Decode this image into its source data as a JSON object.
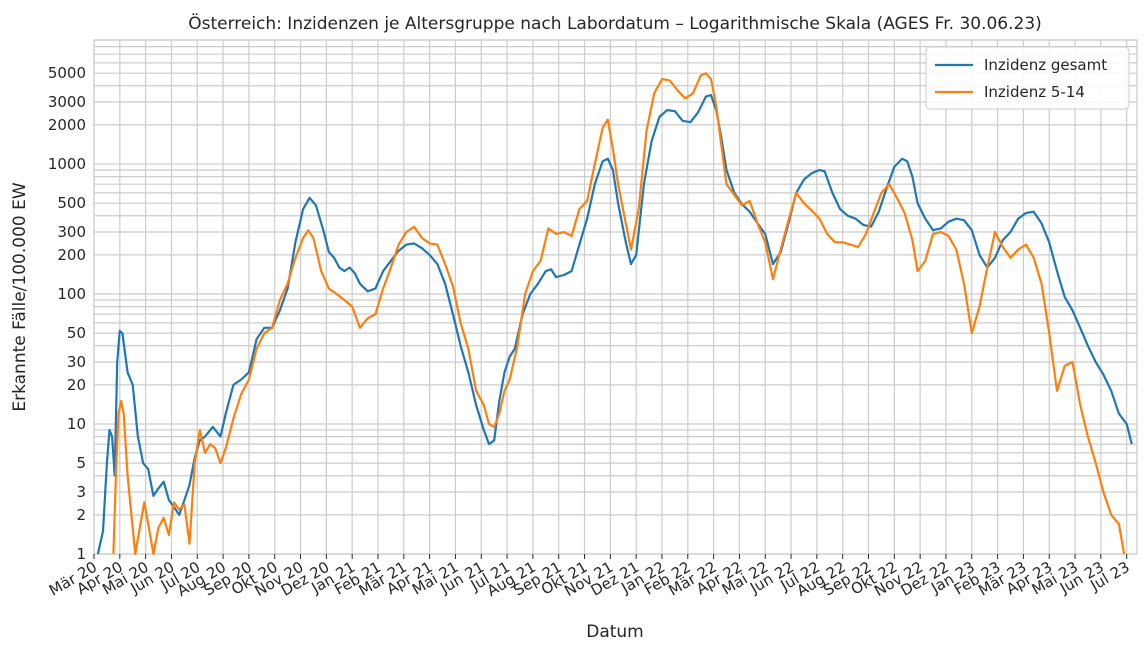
{
  "chart_data": {
    "type": "line",
    "title": "Österreich: Inzidenzen je Altersgruppe nach Labordatum – Logarithmische Skala (AGES Fr. 30.06.23)",
    "xlabel": "Datum",
    "ylabel": "Erkannte Fälle/100.000 EW",
    "yscale": "log",
    "ylim": [
      1,
      9000
    ],
    "xlim": [
      0,
      40.4
    ],
    "grid": true,
    "legend_position": "top-right",
    "x_tick_labels": [
      "Mär 20",
      "Apr 20",
      "Mai 20",
      "Jun 20",
      "Jul 20",
      "Aug 20",
      "Sep 20",
      "Okt 20",
      "Nov 20",
      "Dez 20",
      "Jan 21",
      "Feb 21",
      "Mär 21",
      "Apr 21",
      "Mai 21",
      "Jun 21",
      "Jul 21",
      "Aug 21",
      "Sep 21",
      "Okt 21",
      "Nov 21",
      "Dez 21",
      "Jan 22",
      "Feb 22",
      "Mär 22",
      "Apr 22",
      "Mai 22",
      "Jun 22",
      "Jul 22",
      "Aug 22",
      "Sep 22",
      "Okt 22",
      "Nov 22",
      "Dez 22",
      "Jan 23",
      "Feb 23",
      "Mär 23",
      "Apr 23",
      "Mai 23",
      "Jun 23",
      "Jul 23"
    ],
    "y_ticks": [
      1,
      2,
      3,
      5,
      10,
      20,
      30,
      50,
      100,
      200,
      300,
      500,
      1000,
      2000,
      3000,
      5000
    ],
    "y_tick_labels": [
      "1",
      "2",
      "3",
      "5",
      "10",
      "20",
      "30",
      "50",
      "100",
      "200",
      "300",
      "500",
      "1000",
      "2000",
      "3000",
      "5000"
    ],
    "x_unit": "months since Mar 2020",
    "series": [
      {
        "name": "Inzidenz gesamt",
        "color": "#1f77b4",
        "points": [
          [
            0.15,
            1
          ],
          [
            0.35,
            1.5
          ],
          [
            0.5,
            5
          ],
          [
            0.6,
            9
          ],
          [
            0.7,
            8
          ],
          [
            0.8,
            4
          ],
          [
            0.9,
            30
          ],
          [
            1.0,
            52
          ],
          [
            1.1,
            50
          ],
          [
            1.3,
            25
          ],
          [
            1.5,
            20
          ],
          [
            1.7,
            8
          ],
          [
            1.9,
            5
          ],
          [
            2.1,
            4.5
          ],
          [
            2.3,
            2.8
          ],
          [
            2.5,
            3.2
          ],
          [
            2.7,
            3.6
          ],
          [
            2.9,
            2.6
          ],
          [
            3.1,
            2.3
          ],
          [
            3.3,
            2.0
          ],
          [
            3.5,
            2.6
          ],
          [
            3.7,
            3.4
          ],
          [
            3.9,
            5.5
          ],
          [
            4.1,
            7.5
          ],
          [
            4.3,
            8
          ],
          [
            4.6,
            9.5
          ],
          [
            4.9,
            8
          ],
          [
            5.1,
            12
          ],
          [
            5.4,
            20
          ],
          [
            5.7,
            22
          ],
          [
            6.0,
            25
          ],
          [
            6.3,
            45
          ],
          [
            6.6,
            55
          ],
          [
            6.9,
            55
          ],
          [
            7.2,
            75
          ],
          [
            7.5,
            110
          ],
          [
            7.8,
            250
          ],
          [
            8.1,
            450
          ],
          [
            8.35,
            550
          ],
          [
            8.6,
            480
          ],
          [
            8.9,
            300
          ],
          [
            9.1,
            210
          ],
          [
            9.3,
            190
          ],
          [
            9.5,
            160
          ],
          [
            9.7,
            150
          ],
          [
            9.9,
            160
          ],
          [
            10.1,
            145
          ],
          [
            10.3,
            120
          ],
          [
            10.6,
            105
          ],
          [
            10.9,
            110
          ],
          [
            11.2,
            150
          ],
          [
            11.5,
            180
          ],
          [
            11.8,
            215
          ],
          [
            12.1,
            240
          ],
          [
            12.4,
            245
          ],
          [
            12.7,
            225
          ],
          [
            13.0,
            200
          ],
          [
            13.3,
            170
          ],
          [
            13.6,
            120
          ],
          [
            13.9,
            70
          ],
          [
            14.2,
            40
          ],
          [
            14.5,
            25
          ],
          [
            14.8,
            14
          ],
          [
            15.1,
            9
          ],
          [
            15.3,
            7
          ],
          [
            15.5,
            7.5
          ],
          [
            15.7,
            15
          ],
          [
            15.9,
            25
          ],
          [
            16.1,
            33
          ],
          [
            16.3,
            38
          ],
          [
            16.6,
            70
          ],
          [
            16.9,
            100
          ],
          [
            17.2,
            120
          ],
          [
            17.5,
            150
          ],
          [
            17.7,
            155
          ],
          [
            17.9,
            135
          ],
          [
            18.2,
            140
          ],
          [
            18.5,
            150
          ],
          [
            18.8,
            240
          ],
          [
            19.1,
            380
          ],
          [
            19.4,
            700
          ],
          [
            19.7,
            1050
          ],
          [
            19.9,
            1100
          ],
          [
            20.1,
            900
          ],
          [
            20.3,
            500
          ],
          [
            20.6,
            250
          ],
          [
            20.8,
            170
          ],
          [
            21.0,
            200
          ],
          [
            21.3,
            700
          ],
          [
            21.6,
            1500
          ],
          [
            21.9,
            2300
          ],
          [
            22.2,
            2600
          ],
          [
            22.5,
            2550
          ],
          [
            22.8,
            2150
          ],
          [
            23.1,
            2100
          ],
          [
            23.4,
            2500
          ],
          [
            23.7,
            3300
          ],
          [
            23.9,
            3400
          ],
          [
            24.1,
            2600
          ],
          [
            24.3,
            1600
          ],
          [
            24.5,
            900
          ],
          [
            24.8,
            600
          ],
          [
            25.1,
            490
          ],
          [
            25.4,
            430
          ],
          [
            25.7,
            350
          ],
          [
            26.0,
            290
          ],
          [
            26.3,
            170
          ],
          [
            26.6,
            210
          ],
          [
            26.9,
            350
          ],
          [
            27.2,
            600
          ],
          [
            27.5,
            760
          ],
          [
            27.8,
            850
          ],
          [
            28.1,
            900
          ],
          [
            28.3,
            880
          ],
          [
            28.6,
            600
          ],
          [
            28.9,
            450
          ],
          [
            29.2,
            400
          ],
          [
            29.5,
            380
          ],
          [
            29.8,
            340
          ],
          [
            30.1,
            330
          ],
          [
            30.4,
            430
          ],
          [
            30.7,
            650
          ],
          [
            31.0,
            950
          ],
          [
            31.3,
            1100
          ],
          [
            31.5,
            1050
          ],
          [
            31.7,
            800
          ],
          [
            31.9,
            500
          ],
          [
            32.2,
            380
          ],
          [
            32.5,
            310
          ],
          [
            32.8,
            320
          ],
          [
            33.1,
            360
          ],
          [
            33.4,
            380
          ],
          [
            33.7,
            370
          ],
          [
            34.0,
            310
          ],
          [
            34.3,
            200
          ],
          [
            34.6,
            160
          ],
          [
            34.9,
            190
          ],
          [
            35.2,
            260
          ],
          [
            35.5,
            300
          ],
          [
            35.8,
            380
          ],
          [
            36.1,
            420
          ],
          [
            36.4,
            430
          ],
          [
            36.7,
            350
          ],
          [
            37.0,
            250
          ],
          [
            37.3,
            150
          ],
          [
            37.6,
            95
          ],
          [
            37.9,
            75
          ],
          [
            38.2,
            55
          ],
          [
            38.5,
            40
          ],
          [
            38.8,
            30
          ],
          [
            39.1,
            24
          ],
          [
            39.4,
            18
          ],
          [
            39.7,
            12
          ],
          [
            40.0,
            10
          ],
          [
            40.2,
            7
          ]
        ]
      },
      {
        "name": "Inzidenz 5-14",
        "color": "#ff7f0e",
        "points": [
          [
            0.75,
            1
          ],
          [
            0.85,
            4
          ],
          [
            0.95,
            12
          ],
          [
            1.05,
            15
          ],
          [
            1.15,
            12
          ],
          [
            1.3,
            4
          ],
          [
            1.45,
            2
          ],
          [
            1.6,
            1
          ],
          [
            1.75,
            1.5
          ],
          [
            1.95,
            2.5
          ],
          [
            2.15,
            1.5
          ],
          [
            2.3,
            1
          ],
          [
            2.5,
            1.6
          ],
          [
            2.7,
            1.9
          ],
          [
            2.9,
            1.4
          ],
          [
            3.1,
            2.5
          ],
          [
            3.3,
            2.2
          ],
          [
            3.5,
            2.4
          ],
          [
            3.7,
            1.2
          ],
          [
            3.9,
            5
          ],
          [
            4.1,
            9
          ],
          [
            4.3,
            6
          ],
          [
            4.5,
            7
          ],
          [
            4.7,
            6.5
          ],
          [
            4.9,
            5
          ],
          [
            5.1,
            6.5
          ],
          [
            5.4,
            11
          ],
          [
            5.7,
            17
          ],
          [
            6.0,
            22
          ],
          [
            6.3,
            38
          ],
          [
            6.6,
            50
          ],
          [
            6.9,
            55
          ],
          [
            7.2,
            90
          ],
          [
            7.5,
            120
          ],
          [
            7.8,
            190
          ],
          [
            8.1,
            270
          ],
          [
            8.3,
            310
          ],
          [
            8.5,
            270
          ],
          [
            8.8,
            150
          ],
          [
            9.1,
            110
          ],
          [
            9.4,
            100
          ],
          [
            9.7,
            90
          ],
          [
            10.0,
            80
          ],
          [
            10.3,
            55
          ],
          [
            10.6,
            65
          ],
          [
            10.9,
            70
          ],
          [
            11.2,
            110
          ],
          [
            11.5,
            160
          ],
          [
            11.8,
            240
          ],
          [
            12.1,
            300
          ],
          [
            12.4,
            330
          ],
          [
            12.7,
            270
          ],
          [
            13.0,
            245
          ],
          [
            13.3,
            240
          ],
          [
            13.6,
            170
          ],
          [
            13.9,
            115
          ],
          [
            14.2,
            60
          ],
          [
            14.5,
            38
          ],
          [
            14.8,
            18
          ],
          [
            15.1,
            14
          ],
          [
            15.3,
            10
          ],
          [
            15.5,
            9.5
          ],
          [
            15.7,
            12
          ],
          [
            15.9,
            18
          ],
          [
            16.1,
            22
          ],
          [
            16.4,
            40
          ],
          [
            16.7,
            100
          ],
          [
            17.0,
            150
          ],
          [
            17.3,
            180
          ],
          [
            17.6,
            320
          ],
          [
            17.9,
            290
          ],
          [
            18.2,
            300
          ],
          [
            18.5,
            280
          ],
          [
            18.8,
            450
          ],
          [
            19.1,
            520
          ],
          [
            19.4,
            1000
          ],
          [
            19.7,
            1900
          ],
          [
            19.9,
            2200
          ],
          [
            20.1,
            1300
          ],
          [
            20.3,
            700
          ],
          [
            20.6,
            350
          ],
          [
            20.8,
            220
          ],
          [
            21.1,
            450
          ],
          [
            21.4,
            1800
          ],
          [
            21.7,
            3500
          ],
          [
            22.0,
            4500
          ],
          [
            22.3,
            4400
          ],
          [
            22.6,
            3700
          ],
          [
            22.9,
            3200
          ],
          [
            23.2,
            3500
          ],
          [
            23.5,
            4800
          ],
          [
            23.7,
            5000
          ],
          [
            23.9,
            4500
          ],
          [
            24.1,
            2800
          ],
          [
            24.3,
            1400
          ],
          [
            24.5,
            700
          ],
          [
            24.8,
            580
          ],
          [
            25.1,
            480
          ],
          [
            25.4,
            520
          ],
          [
            25.7,
            350
          ],
          [
            26.0,
            250
          ],
          [
            26.3,
            130
          ],
          [
            26.6,
            220
          ],
          [
            26.9,
            370
          ],
          [
            27.2,
            600
          ],
          [
            27.5,
            500
          ],
          [
            27.8,
            440
          ],
          [
            28.1,
            380
          ],
          [
            28.4,
            290
          ],
          [
            28.7,
            250
          ],
          [
            29.0,
            250
          ],
          [
            29.3,
            240
          ],
          [
            29.6,
            230
          ],
          [
            29.9,
            290
          ],
          [
            30.2,
            420
          ],
          [
            30.5,
            600
          ],
          [
            30.8,
            700
          ],
          [
            31.1,
            550
          ],
          [
            31.4,
            420
          ],
          [
            31.7,
            260
          ],
          [
            31.9,
            150
          ],
          [
            32.2,
            180
          ],
          [
            32.5,
            290
          ],
          [
            32.8,
            300
          ],
          [
            33.1,
            280
          ],
          [
            33.4,
            220
          ],
          [
            33.7,
            120
          ],
          [
            34.0,
            50
          ],
          [
            34.3,
            80
          ],
          [
            34.6,
            160
          ],
          [
            34.9,
            300
          ],
          [
            35.2,
            230
          ],
          [
            35.5,
            190
          ],
          [
            35.8,
            220
          ],
          [
            36.1,
            240
          ],
          [
            36.4,
            190
          ],
          [
            36.7,
            120
          ],
          [
            37.0,
            50
          ],
          [
            37.3,
            18
          ],
          [
            37.6,
            28
          ],
          [
            37.9,
            30
          ],
          [
            38.2,
            14
          ],
          [
            38.5,
            8
          ],
          [
            38.8,
            5
          ],
          [
            39.1,
            3
          ],
          [
            39.4,
            2
          ],
          [
            39.7,
            1.7
          ],
          [
            39.9,
            1
          ]
        ]
      }
    ]
  }
}
